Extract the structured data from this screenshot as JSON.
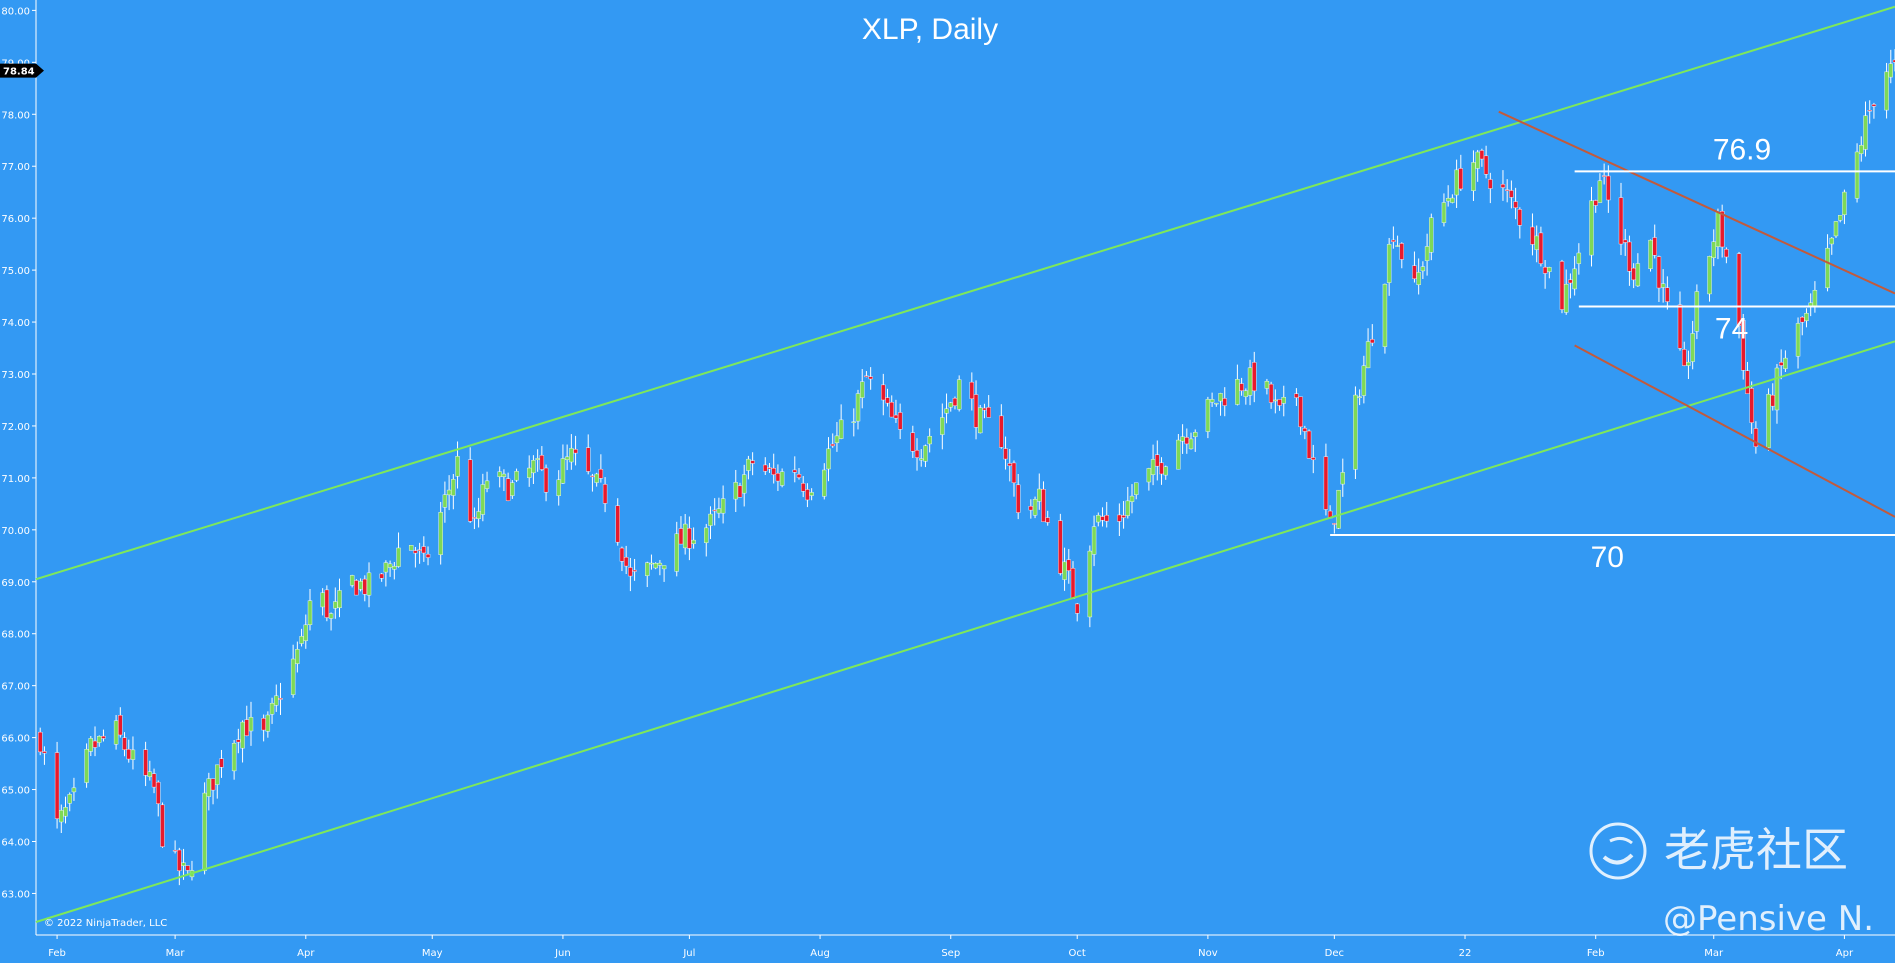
{
  "chart_data": {
    "type": "candlestick",
    "title": "XLP, Daily",
    "ylim": [
      62.2,
      80.2
    ],
    "y_ticks": [
      "80.00",
      "79.00",
      "78.00",
      "77.00",
      "76.00",
      "75.00",
      "74.00",
      "73.00",
      "72.00",
      "71.00",
      "70.00",
      "69.00",
      "68.00",
      "67.00",
      "66.00",
      "65.00",
      "64.00",
      "63.00"
    ],
    "x_ticks": [
      {
        "label": "Feb",
        "date": "2021-02-01"
      },
      {
        "label": "Mar",
        "date": "2021-03-01"
      },
      {
        "label": "Apr",
        "date": "2021-04-01"
      },
      {
        "label": "May",
        "date": "2021-05-01"
      },
      {
        "label": "Jun",
        "date": "2021-06-01"
      },
      {
        "label": "Jul",
        "date": "2021-07-01"
      },
      {
        "label": "Aug",
        "date": "2021-08-01"
      },
      {
        "label": "Sep",
        "date": "2021-09-01"
      },
      {
        "label": "Oct",
        "date": "2021-10-01"
      },
      {
        "label": "Nov",
        "date": "2021-11-01"
      },
      {
        "label": "Dec",
        "date": "2021-12-01"
      },
      {
        "label": "22",
        "date": "2022-01-01"
      },
      {
        "label": "Feb",
        "date": "2022-02-01"
      },
      {
        "label": "Mar",
        "date": "2022-03-01"
      },
      {
        "label": "Apr",
        "date": "2022-04-01"
      }
    ],
    "x_range": [
      "2021-01-27",
      "2022-04-13"
    ],
    "last_price": "78.84",
    "close_path": [
      [
        "2021-01-28",
        66.0
      ],
      [
        "2021-02-01",
        64.3
      ],
      [
        "2021-02-05",
        64.8
      ],
      [
        "2021-02-09",
        65.8
      ],
      [
        "2021-02-15",
        66.1
      ],
      [
        "2021-02-20",
        65.4
      ],
      [
        "2021-02-24",
        65.0
      ],
      [
        "2021-02-27",
        63.7
      ],
      [
        "2021-03-04",
        63.3
      ],
      [
        "2021-03-08",
        64.8
      ],
      [
        "2021-03-12",
        65.6
      ],
      [
        "2021-03-17",
        66.3
      ],
      [
        "2021-03-22",
        66.0
      ],
      [
        "2021-03-26",
        66.9
      ],
      [
        "2021-03-31",
        67.8
      ],
      [
        "2021-04-03",
        69.0
      ],
      [
        "2021-04-07",
        68.3
      ],
      [
        "2021-04-12",
        69.0
      ],
      [
        "2021-04-16",
        68.9
      ],
      [
        "2021-04-20",
        69.2
      ],
      [
        "2021-04-25",
        69.9
      ],
      [
        "2021-04-29",
        69.3
      ],
      [
        "2021-05-03",
        70.3
      ],
      [
        "2021-05-07",
        71.3
      ],
      [
        "2021-05-11",
        70.0
      ],
      [
        "2021-05-14",
        71.0
      ],
      [
        "2021-05-20",
        70.8
      ],
      [
        "2021-05-25",
        71.2
      ],
      [
        "2021-05-29",
        70.9
      ],
      [
        "2021-06-03",
        71.4
      ],
      [
        "2021-06-08",
        70.9
      ],
      [
        "2021-06-12",
        70.6
      ],
      [
        "2021-06-17",
        69.0
      ],
      [
        "2021-06-21",
        69.2
      ],
      [
        "2021-06-26",
        69.6
      ],
      [
        "2021-07-01",
        69.9
      ],
      [
        "2021-07-06",
        70.1
      ],
      [
        "2021-07-11",
        70.6
      ],
      [
        "2021-07-16",
        71.3
      ],
      [
        "2021-07-21",
        71.0
      ],
      [
        "2021-07-26",
        71.2
      ],
      [
        "2021-07-29",
        70.8
      ],
      [
        "2021-08-03",
        71.5
      ],
      [
        "2021-08-08",
        72.1
      ],
      [
        "2021-08-12",
        72.9
      ],
      [
        "2021-08-16",
        72.4
      ],
      [
        "2021-08-20",
        71.8
      ],
      [
        "2021-08-25",
        71.6
      ],
      [
        "2021-08-30",
        72.2
      ],
      [
        "2021-09-03",
        72.8
      ],
      [
        "2021-09-08",
        72.1
      ],
      [
        "2021-09-13",
        71.8
      ],
      [
        "2021-09-18",
        70.2
      ],
      [
        "2021-09-22",
        70.6
      ],
      [
        "2021-09-27",
        69.4
      ],
      [
        "2021-10-01",
        68.6
      ],
      [
        "2021-10-05",
        70.2
      ],
      [
        "2021-10-10",
        70.1
      ],
      [
        "2021-10-15",
        70.8
      ],
      [
        "2021-10-20",
        71.2
      ],
      [
        "2021-10-25",
        71.8
      ],
      [
        "2021-10-29",
        72.0
      ],
      [
        "2021-11-03",
        72.5
      ],
      [
        "2021-11-08",
        72.8
      ],
      [
        "2021-11-13",
        72.9
      ],
      [
        "2021-11-18",
        72.2
      ],
      [
        "2021-11-22",
        72.6
      ],
      [
        "2021-11-26",
        71.2
      ],
      [
        "2021-11-30",
        70.0
      ],
      [
        "2021-12-03",
        71.0
      ],
      [
        "2021-12-07",
        72.8
      ],
      [
        "2021-12-11",
        74.2
      ],
      [
        "2021-12-15",
        75.8
      ],
      [
        "2021-12-20",
        74.6
      ],
      [
        "2021-12-24",
        75.8
      ],
      [
        "2021-12-29",
        76.6
      ],
      [
        "2022-01-03",
        77.1
      ],
      [
        "2022-01-07",
        76.8
      ],
      [
        "2022-01-11",
        76.4
      ],
      [
        "2022-01-15",
        75.9
      ],
      [
        "2022-01-19",
        75.4
      ],
      [
        "2022-01-24",
        74.4
      ],
      [
        "2022-01-28",
        75.4
      ],
      [
        "2022-02-02",
        76.8
      ],
      [
        "2022-02-06",
        75.8
      ],
      [
        "2022-02-10",
        75.0
      ],
      [
        "2022-02-14",
        75.6
      ],
      [
        "2022-02-18",
        74.2
      ],
      [
        "2022-02-22",
        72.9
      ],
      [
        "2022-02-26",
        74.8
      ],
      [
        "2022-03-02",
        75.9
      ],
      [
        "2022-03-06",
        74.6
      ],
      [
        "2022-03-09",
        72.6
      ],
      [
        "2022-03-11",
        71.6
      ],
      [
        "2022-03-15",
        72.6
      ],
      [
        "2022-03-19",
        73.6
      ],
      [
        "2022-03-24",
        74.2
      ],
      [
        "2022-03-28",
        75.2
      ],
      [
        "2022-04-01",
        76.3
      ],
      [
        "2022-04-06",
        77.8
      ],
      [
        "2022-04-10",
        78.9
      ],
      [
        "2022-04-13",
        78.84
      ]
    ],
    "trend_lines": [
      {
        "name": "upper-channel",
        "color": "#7ee85a",
        "from": [
          "2021-01-27",
          69.05
        ],
        "to": [
          "2022-04-13",
          80.07
        ]
      },
      {
        "name": "lower-channel",
        "color": "#7ee85a",
        "from": [
          "2021-01-27",
          62.45
        ],
        "to": [
          "2022-04-13",
          73.63
        ]
      },
      {
        "name": "upper-down-channel",
        "color": "#c25a3c",
        "from": [
          "2022-01-09",
          78.05
        ],
        "to": [
          "2022-04-13",
          74.55
        ]
      },
      {
        "name": "lower-down-channel",
        "color": "#c25a3c",
        "from": [
          "2022-01-27",
          73.55
        ],
        "to": [
          "2022-04-13",
          70.25
        ]
      }
    ],
    "levels": [
      {
        "label": "76.9",
        "value": 76.9,
        "from": "2022-01-27"
      },
      {
        "label": "74",
        "value": 74.3,
        "from": "2022-01-28"
      },
      {
        "label": "70",
        "value": 69.9,
        "from": "2021-11-30"
      }
    ],
    "colors": {
      "background": "#3399f3",
      "up": "#7ed957",
      "down": "#e8192c",
      "wick": "#ffffff"
    }
  },
  "footer": {
    "copyright": "© 2022 NinjaTrader, LLC"
  },
  "watermark": {
    "brand": "老虎社区",
    "handle": "@Pensive N."
  }
}
